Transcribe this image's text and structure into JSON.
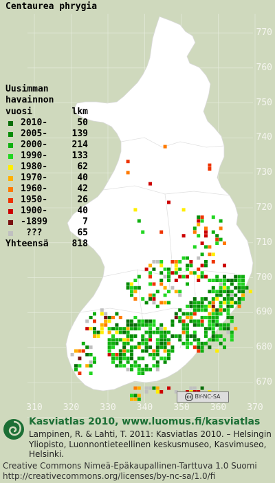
{
  "title": "Centaurea phrygia",
  "legend": {
    "heading": [
      "Uusimman",
      "havainnon"
    ],
    "col_year": "vuosi",
    "col_count": "lkm",
    "rows": [
      {
        "label": "2010-",
        "count": "50",
        "color": "#0a6e0a"
      },
      {
        "label": "2005-",
        "count": "139",
        "color": "#078c07"
      },
      {
        "label": "2000-",
        "count": "214",
        "color": "#10b010"
      },
      {
        "label": "1990-",
        "count": "133",
        "color": "#22d622"
      },
      {
        "label": "1980-",
        "count": "62",
        "color": "#ffee00"
      },
      {
        "label": "1970-",
        "count": "40",
        "color": "#ffb000"
      },
      {
        "label": "1960-",
        "count": "42",
        "color": "#ff7a00"
      },
      {
        "label": "1950-",
        "count": "26",
        "color": "#ee3300"
      },
      {
        "label": "1900-",
        "count": "40",
        "color": "#cc0000"
      },
      {
        "label": "-1899",
        "count": "7",
        "color": "#7a1010"
      },
      {
        "label": "???",
        "count": "65",
        "color": "#c0c0c0"
      }
    ],
    "total_label": "Yhteensä",
    "total_count": "818"
  },
  "axis_y": [
    "770",
    "760",
    "750",
    "740",
    "730",
    "720",
    "710",
    "700",
    "690",
    "680",
    "670"
  ],
  "axis_x": [
    "310",
    "320",
    "330",
    "340",
    "350",
    "360",
    "370"
  ],
  "license_badge": "BY-NC-SA",
  "footer": {
    "site": "Kasviatlas 2010, www.luomus.fi/kasviatlas",
    "citation": "Lampinen, R. & Lahti, T. 2011: Kasviatlas 2010. – Helsingin Yliopisto, Luonnontieteellinen keskusmuseo, Kasvimuseo, Helsinki.",
    "license_line1": "Creative Commons Nimeä-Epäkaupallinen-Tarttuva 1.0 Suomi",
    "license_line2": "http://creativecommons.org/licenses/by-nc-sa/1.0/fi"
  },
  "colors": {
    "background": "#cfd9bd",
    "land": "#ffffff",
    "grid": "#e8ede0",
    "brand": "#1c6f35"
  }
}
